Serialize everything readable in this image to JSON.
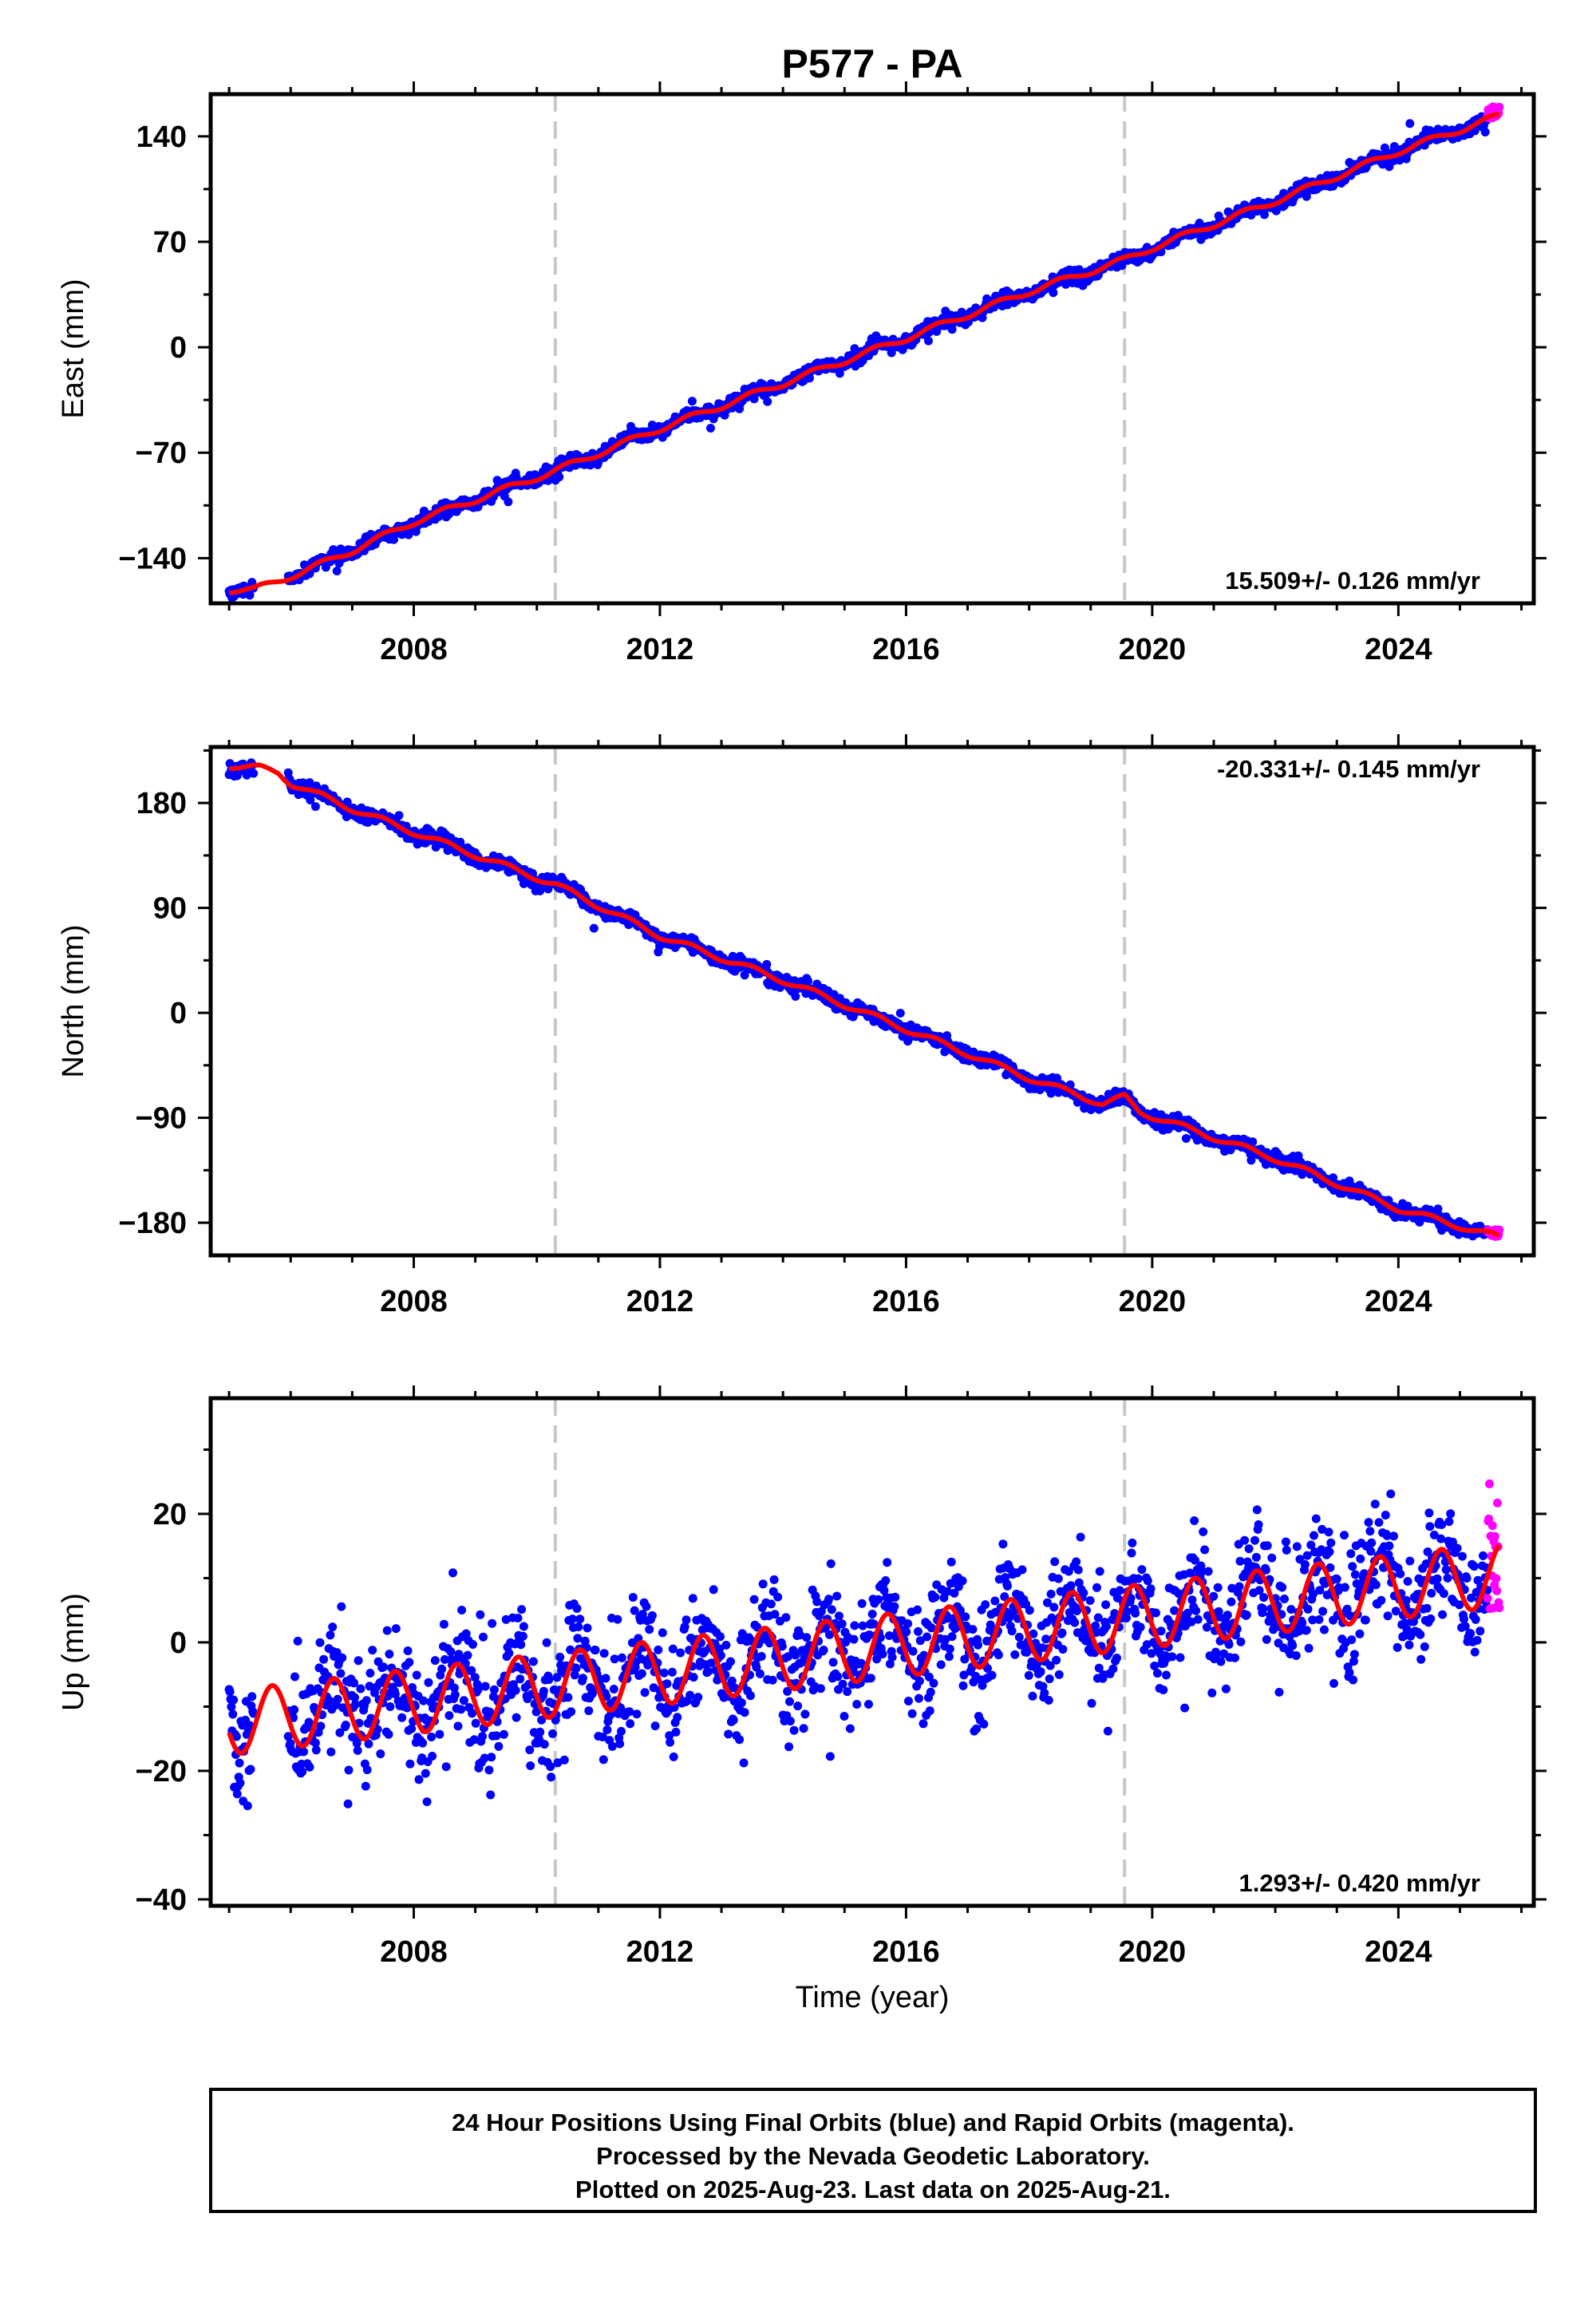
{
  "chart_data": {
    "type": "scatter",
    "title": "P577 - PA",
    "xlabel": "Time (year)",
    "xlim": [
      2004.7,
      2026.2
    ],
    "x_ticks": [
      2008,
      2012,
      2016,
      2020,
      2024
    ],
    "x_minor_step": 1,
    "vertical_markers": [
      2010.3,
      2019.55
    ],
    "colors": {
      "final_orbits": "#0000ff",
      "rapid_orbits": "#ff00ff",
      "model_fit": "#ff0000",
      "markers": "#c8c8c8"
    },
    "panels": [
      {
        "id": "east",
        "ylabel": "East (mm)",
        "ylim": [
          -170,
          168
        ],
        "y_ticks": [
          -140,
          -70,
          0,
          70,
          140
        ],
        "y_minor_step": 35,
        "rate_text": "15.509+/- 0.126 mm/yr",
        "rate_position": "bottom-right",
        "model": {
          "t0": 2005.0,
          "knots": [
            [
              2005.0,
              -161
            ],
            [
              2005.4,
              -161
            ],
            [
              2005.8,
              -155
            ],
            [
              2006.2,
              -149
            ],
            [
              2007.0,
              -135
            ],
            [
              2008.0,
              -116
            ],
            [
              2010.3,
              -82
            ],
            [
              2012.0,
              -54
            ],
            [
              2014.0,
              -24
            ],
            [
              2016.0,
              6
            ],
            [
              2018.0,
              37
            ],
            [
              2019.55,
              58
            ],
            [
              2020.0,
              66
            ],
            [
              2022.0,
              97
            ],
            [
              2024.0,
              130
            ],
            [
              2025.6,
              153
            ]
          ],
          "seasonal_amplitude": 2,
          "noise_sd": 2.2
        },
        "data_start": 2005.0,
        "data_gap": [
          2005.4,
          2005.95
        ],
        "data_end": 2025.45,
        "rapid_range": [
          2025.45,
          2025.64
        ],
        "rapid_y": [
          152,
          160
        ]
      },
      {
        "id": "north",
        "ylabel": "North (mm)",
        "ylim": [
          -208,
          228
        ],
        "y_ticks": [
          -180,
          -90,
          0,
          90,
          180
        ],
        "y_minor_step": 45,
        "rate_text": "-20.331+/- 0.145 mm/yr",
        "rate_position": "top-right",
        "model": {
          "t0": 2005.0,
          "knots": [
            [
              2005.0,
              212
            ],
            [
              2005.5,
              210
            ],
            [
              2005.8,
              206
            ],
            [
              2006.0,
              197
            ],
            [
              2007.0,
              175
            ],
            [
              2008.0,
              155
            ],
            [
              2010.3,
              110
            ],
            [
              2012.0,
              66
            ],
            [
              2014.0,
              28
            ],
            [
              2016.0,
              -14
            ],
            [
              2018.0,
              -56
            ],
            [
              2019.2,
              -78
            ],
            [
              2019.55,
              -72
            ],
            [
              2019.8,
              -85
            ],
            [
              2022.0,
              -125
            ],
            [
              2024.0,
              -168
            ],
            [
              2025.6,
              -192
            ]
          ],
          "seasonal_amplitude": 2.5,
          "noise_sd": 3
        },
        "data_start": 2005.0,
        "data_gap": [
          2005.4,
          2005.95
        ],
        "data_end": 2025.45,
        "rapid_range": [
          2025.45,
          2025.64
        ],
        "rapid_y": [
          -193,
          -186
        ]
      },
      {
        "id": "up",
        "ylabel": "Up (mm)",
        "ylim": [
          -41,
          38
        ],
        "y_ticks": [
          -40,
          -20,
          0,
          20
        ],
        "y_minor_step": 10,
        "rate_text": "1.293+/- 0.420 mm/yr",
        "rate_position": "bottom-right",
        "model": {
          "t0": 2005.0,
          "knots": [
            [
              2005.0,
              -12.5
            ],
            [
              2025.6,
              10.5
            ]
          ],
          "seasonal_amplitude": 5,
          "seasonal_phase_peak": 0.7,
          "noise_sd": 4.5
        },
        "data_start": 2005.0,
        "data_gap": [
          2005.4,
          2005.95
        ],
        "data_end": 2025.45,
        "rapid_range": [
          2025.45,
          2025.64
        ],
        "rapid_y": [
          5,
          25
        ]
      }
    ]
  },
  "footer": {
    "line1": "24 Hour Positions Using Final Orbits (blue) and Rapid Orbits (magenta).",
    "line2": "Processed by the Nevada Geodetic Laboratory.",
    "line3": "Plotted on 2025-Aug-23. Last data on 2025-Aug-21."
  }
}
